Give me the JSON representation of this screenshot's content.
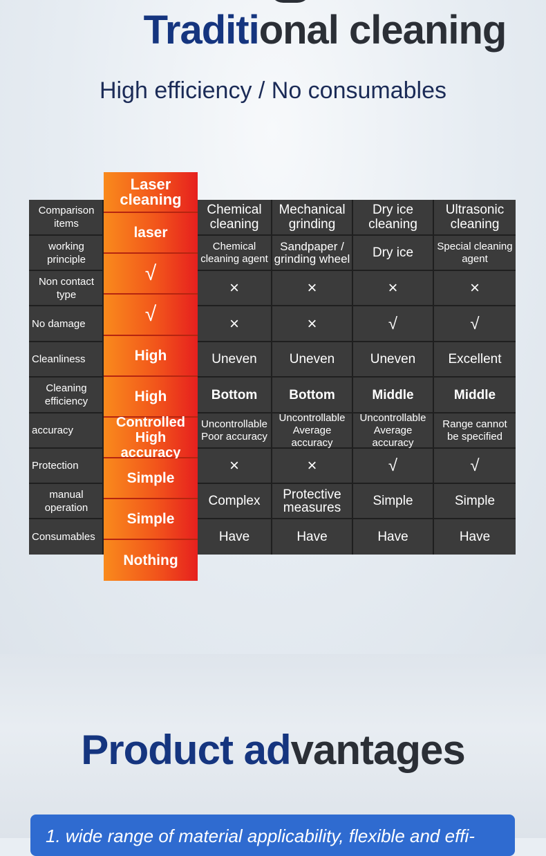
{
  "title": {
    "part1": "Traditi",
    "part2": "onal cleaning"
  },
  "subtitle": "High efficiency / No consumables",
  "laser": {
    "header": "Laser cleaning",
    "values": [
      "laser",
      "√",
      "√",
      "High",
      "High",
      "Controlled High accuracy",
      "Simple",
      "Simple",
      "Nothing"
    ]
  },
  "columns": [
    "Chemical cleaning",
    "Mechanical grinding",
    "Dry ice cleaning",
    "Ultrasonic cleaning"
  ],
  "rows": [
    {
      "label": "Comparison items"
    },
    {
      "label": "working principle",
      "values": [
        "Chemical cleaning agent",
        "Sandpaper / grinding wheel",
        "Dry ice",
        "Special cleaning agent"
      ]
    },
    {
      "label": "Non contact type",
      "values": [
        "×",
        "×",
        "×",
        "×"
      ]
    },
    {
      "label": "No damage",
      "values": [
        "×",
        "×",
        "√",
        "√"
      ]
    },
    {
      "label": "Cleanliness",
      "values": [
        "Uneven",
        "Uneven",
        "Uneven",
        "Excellent"
      ]
    },
    {
      "label": "Cleaning efficiency",
      "values": [
        "Bottom",
        "Bottom",
        "Middle",
        "Middle"
      ]
    },
    {
      "label": "accuracy",
      "values": [
        "Uncontrollable Poor accuracy",
        "Uncontrollable Average accuracy",
        "Uncontrollable Average accuracy",
        "Range cannot be specified"
      ]
    },
    {
      "label": "Protection",
      "values": [
        "×",
        "×",
        "√",
        "√"
      ]
    },
    {
      "label": "manual operation",
      "values": [
        "Complex",
        "Protective measures",
        "Simple",
        "Simple"
      ]
    },
    {
      "label": "Consumables",
      "values": [
        "Have",
        "Have",
        "Have",
        "Have"
      ]
    }
  ],
  "advantages": {
    "title_part1": "Product ad",
    "title_part2": "vantages",
    "item1": "1. wide range of material applicability, flexible and effi-"
  }
}
